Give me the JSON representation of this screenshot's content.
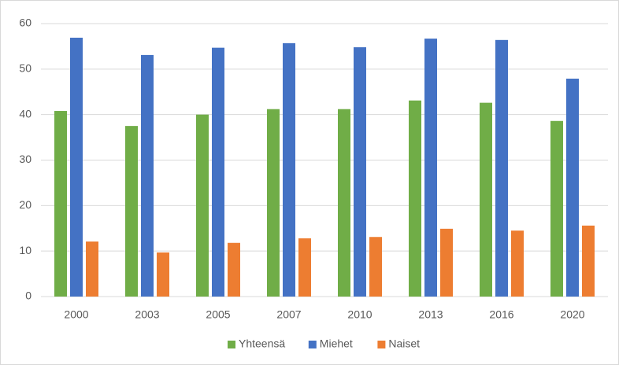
{
  "chart_data": {
    "type": "bar",
    "categories": [
      "2000",
      "2003",
      "2005",
      "2007",
      "2010",
      "2013",
      "2016",
      "2020"
    ],
    "series": [
      {
        "name": "Yhteensä",
        "color": "#70ad47",
        "values": [
          40.8,
          37.5,
          40.0,
          41.2,
          41.2,
          43.1,
          42.6,
          38.6
        ]
      },
      {
        "name": "Miehet",
        "color": "#4472c4",
        "values": [
          56.9,
          53.1,
          54.7,
          55.7,
          54.8,
          56.7,
          56.4,
          47.9
        ]
      },
      {
        "name": "Naiset",
        "color": "#ed7d31",
        "values": [
          12.1,
          9.7,
          11.8,
          12.8,
          13.1,
          14.9,
          14.5,
          15.6
        ]
      }
    ],
    "ylim": [
      0,
      60
    ],
    "yticks": [
      0,
      10,
      20,
      30,
      40,
      50,
      60
    ],
    "grid": true,
    "legend": "bottom"
  }
}
